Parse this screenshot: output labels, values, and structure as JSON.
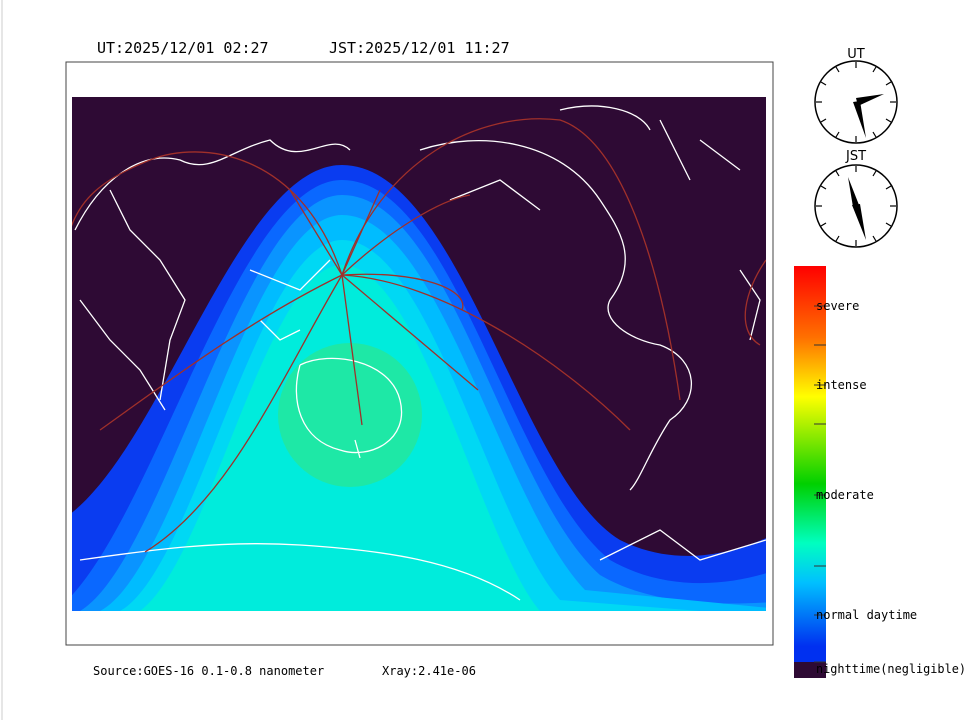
{
  "header": {
    "ut": "UT:2025/12/01 02:27",
    "jst": "JST:2025/12/01 11:27"
  },
  "clocks": [
    {
      "label": "UT"
    },
    {
      "label": "JST"
    }
  ],
  "legend": {
    "labels": [
      "severe",
      "intense",
      "moderate",
      "normal daytime",
      "nighttime(negligible)"
    ]
  },
  "footer": {
    "source": "Source:GOES-16 0.1-0.8 nanometer",
    "xray": "Xray:2.41e-06"
  }
}
